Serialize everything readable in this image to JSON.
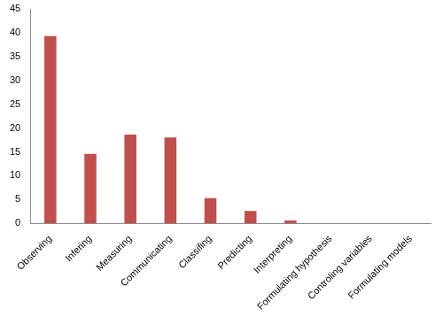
{
  "chart_data": {
    "type": "bar",
    "categories": [
      "Observing",
      "Infering",
      "Measuring",
      "Communicating",
      "Classifing",
      "Predicting",
      "Interpreting",
      "Formulating hypothesis",
      "Controling variables",
      "Formulating models"
    ],
    "values": [
      39.3,
      14.6,
      18.6,
      18.0,
      5.3,
      2.6,
      0.6,
      0,
      0,
      0
    ],
    "color": "#c0504d",
    "ylim": [
      0,
      45
    ],
    "yticks": [
      0,
      5,
      10,
      15,
      20,
      25,
      30,
      35,
      40,
      45
    ],
    "grid": false
  }
}
